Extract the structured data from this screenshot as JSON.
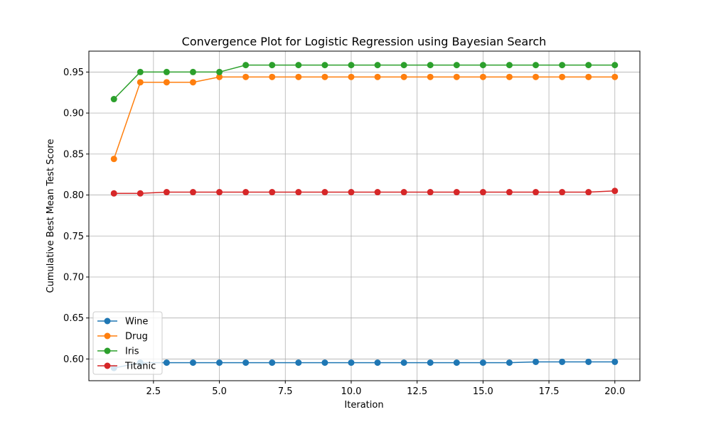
{
  "chart_data": {
    "type": "line",
    "title": "Convergence Plot for Logistic Regression using Bayesian Search",
    "xlabel": "Iteration",
    "ylabel": "Cumulative Best Mean Test Score",
    "xlim": [
      0.05,
      20.95
    ],
    "ylim": [
      0.5735,
      0.9755
    ],
    "xticks": [
      2.5,
      5.0,
      7.5,
      10.0,
      12.5,
      15.0,
      17.5,
      20.0
    ],
    "xtick_labels": [
      "2.5",
      "5.0",
      "7.5",
      "10.0",
      "12.5",
      "15.0",
      "17.5",
      "20.0"
    ],
    "yticks": [
      0.6,
      0.65,
      0.7,
      0.75,
      0.8,
      0.85,
      0.9,
      0.95
    ],
    "ytick_labels": [
      "0.60",
      "0.65",
      "0.70",
      "0.75",
      "0.80",
      "0.85",
      "0.90",
      "0.95"
    ],
    "grid": true,
    "legend_position": "lower-left",
    "x": [
      1,
      2,
      3,
      4,
      5,
      6,
      7,
      8,
      9,
      10,
      11,
      12,
      13,
      14,
      15,
      16,
      17,
      18,
      19,
      20
    ],
    "series": [
      {
        "name": "Wine",
        "color": "#1f77b4",
        "values": [
          0.589,
          0.5955,
          0.5955,
          0.5955,
          0.5955,
          0.5955,
          0.5955,
          0.5955,
          0.5955,
          0.5955,
          0.5955,
          0.5955,
          0.5955,
          0.5955,
          0.5955,
          0.5955,
          0.5965,
          0.5965,
          0.5965,
          0.5965
        ]
      },
      {
        "name": "Drug",
        "color": "#ff7f0e",
        "values": [
          0.844,
          0.9375,
          0.9375,
          0.9375,
          0.944,
          0.944,
          0.944,
          0.944,
          0.944,
          0.944,
          0.944,
          0.944,
          0.944,
          0.944,
          0.944,
          0.944,
          0.944,
          0.944,
          0.944,
          0.944
        ]
      },
      {
        "name": "Iris",
        "color": "#2ca02c",
        "values": [
          0.917,
          0.95,
          0.95,
          0.95,
          0.95,
          0.9585,
          0.9585,
          0.9585,
          0.9585,
          0.9585,
          0.9585,
          0.9585,
          0.9585,
          0.9585,
          0.9585,
          0.9585,
          0.9585,
          0.9585,
          0.9585,
          0.9585
        ]
      },
      {
        "name": "Titanic",
        "color": "#d62728",
        "values": [
          0.802,
          0.802,
          0.8035,
          0.8035,
          0.8035,
          0.8035,
          0.8035,
          0.8035,
          0.8035,
          0.8035,
          0.8035,
          0.8035,
          0.8035,
          0.8035,
          0.8035,
          0.8035,
          0.8035,
          0.8035,
          0.8035,
          0.805
        ]
      }
    ]
  }
}
